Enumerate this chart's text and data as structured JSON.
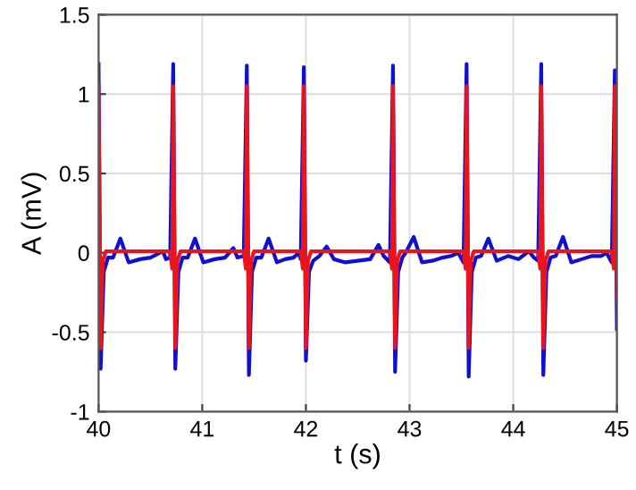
{
  "chart_data": {
    "type": "line",
    "xlabel": "t (s)",
    "ylabel": "A (mV)",
    "xlim": [
      40,
      45
    ],
    "xticks": [
      40,
      41,
      42,
      43,
      44,
      45
    ],
    "ylim": [
      -1,
      1.5
    ],
    "yticks": [
      -1,
      -0.5,
      0,
      0.5,
      1,
      1.5
    ],
    "grid": true,
    "marker": "none",
    "line_style": "solid",
    "series": [
      {
        "color": "#1010d0",
        "x": [
          40.0,
          40.02,
          40.05,
          40.09,
          40.14,
          40.21,
          40.29,
          40.4,
          40.5,
          40.62,
          40.65,
          40.69,
          40.72,
          40.74,
          40.77,
          40.81,
          40.86,
          40.93,
          41.01,
          41.12,
          41.22,
          41.3,
          41.34,
          41.4,
          41.43,
          41.45,
          41.48,
          41.52,
          41.57,
          41.64,
          41.72,
          41.8,
          41.88,
          41.93,
          41.95,
          41.98,
          42.0,
          42.03,
          42.07,
          42.13,
          42.2,
          42.27,
          42.38,
          42.5,
          42.62,
          42.7,
          42.75,
          42.81,
          42.84,
          42.86,
          42.89,
          42.93,
          42.97,
          43.04,
          43.12,
          43.22,
          43.32,
          43.4,
          43.47,
          43.52,
          43.55,
          43.57,
          43.6,
          43.64,
          43.69,
          43.76,
          43.84,
          43.95,
          44.05,
          44.15,
          44.2,
          44.24,
          44.27,
          44.29,
          44.32,
          44.36,
          44.41,
          44.48,
          44.56,
          44.66,
          44.76,
          44.85,
          44.9,
          44.95,
          44.98,
          45.0
        ],
        "values": [
          1.19,
          -0.73,
          -0.12,
          -0.03,
          -0.03,
          0.09,
          -0.06,
          -0.04,
          -0.03,
          0.01,
          -0.04,
          -0.03,
          1.19,
          -0.73,
          -0.12,
          -0.03,
          -0.03,
          0.09,
          -0.06,
          -0.04,
          -0.03,
          0.03,
          -0.03,
          -0.02,
          1.18,
          -0.77,
          -0.12,
          -0.03,
          -0.03,
          0.09,
          -0.06,
          -0.04,
          -0.03,
          0.0,
          -0.04,
          1.17,
          -0.68,
          -0.12,
          -0.05,
          -0.02,
          0.04,
          -0.04,
          -0.06,
          -0.05,
          -0.04,
          0.05,
          -0.02,
          -0.06,
          1.18,
          -0.75,
          -0.12,
          -0.03,
          0.01,
          0.1,
          -0.06,
          -0.05,
          -0.03,
          -0.02,
          0.0,
          -0.06,
          1.19,
          -0.78,
          -0.12,
          -0.03,
          -0.02,
          0.09,
          -0.05,
          -0.02,
          -0.04,
          0.01,
          -0.03,
          -0.05,
          1.19,
          -0.77,
          -0.12,
          -0.03,
          -0.02,
          0.1,
          -0.06,
          -0.04,
          -0.02,
          -0.02,
          0.0,
          -0.06,
          1.15,
          -0.48
        ]
      },
      {
        "color": "#e8141e",
        "x": [
          40.0,
          40.02,
          40.04,
          40.07,
          40.69,
          40.71,
          40.72,
          40.74,
          40.76,
          40.79,
          41.4,
          41.42,
          41.43,
          41.45,
          41.47,
          41.5,
          41.95,
          41.97,
          41.98,
          42.0,
          42.02,
          42.05,
          42.81,
          42.83,
          42.84,
          42.86,
          42.88,
          42.91,
          43.52,
          43.54,
          43.55,
          43.57,
          43.59,
          43.62,
          44.24,
          44.26,
          44.27,
          44.29,
          44.31,
          44.34,
          44.95,
          44.97,
          44.98,
          45.0
        ],
        "values": [
          1.05,
          -0.6,
          -0.05,
          0.01,
          0.01,
          -0.1,
          1.05,
          -0.6,
          -0.05,
          0.01,
          0.01,
          -0.1,
          1.05,
          -0.6,
          -0.05,
          0.01,
          0.01,
          -0.1,
          1.05,
          -0.6,
          -0.05,
          0.01,
          0.01,
          -0.1,
          1.05,
          -0.6,
          -0.05,
          0.01,
          0.01,
          -0.1,
          1.05,
          -0.6,
          -0.05,
          0.01,
          0.01,
          -0.1,
          1.05,
          -0.6,
          -0.05,
          0.01,
          0.01,
          -0.1,
          1.05,
          -0.3
        ]
      }
    ]
  }
}
